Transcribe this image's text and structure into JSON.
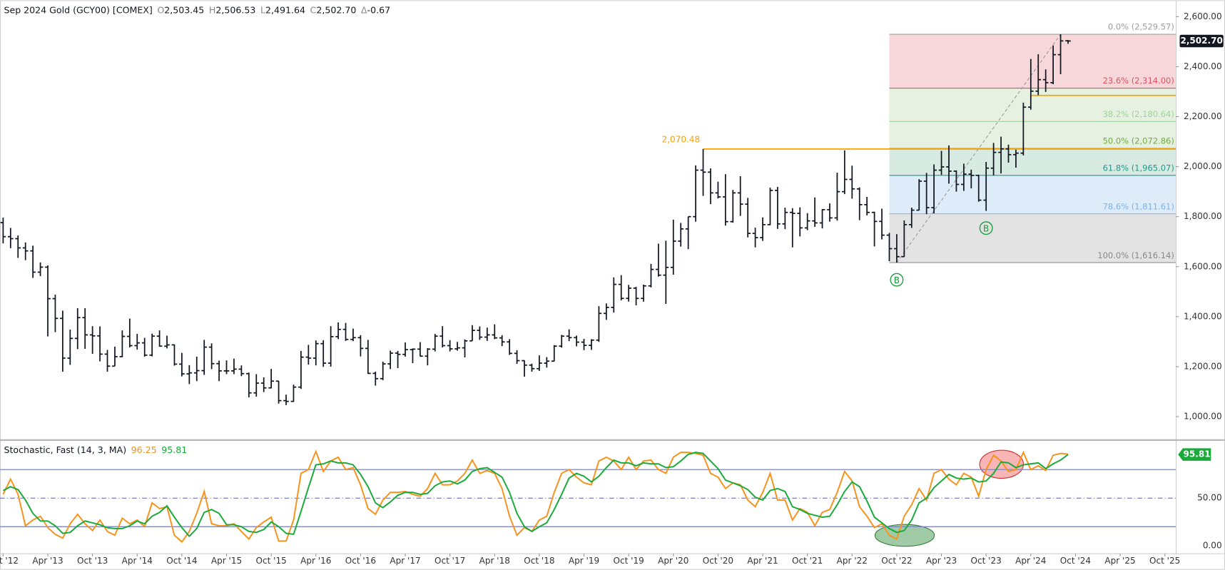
{
  "chart_data": {
    "type": "ohlc",
    "title": "Sep 2024 Gold (GCY00) [COMEX]",
    "quote": [
      {
        "name": "O",
        "value": 2503.45,
        "label": "2,503.45"
      },
      {
        "name": "H",
        "value": 2506.53,
        "label": "2,506.53"
      },
      {
        "name": "L",
        "value": 2491.64,
        "label": "2,491.64"
      },
      {
        "name": "C",
        "value": 2502.7,
        "label": "2,502.70"
      },
      {
        "name": "Δ",
        "value": -0.67
      }
    ],
    "x": [
      "2012-10",
      "2012-11",
      "2012-12",
      "2013-01",
      "2013-02",
      "2013-03",
      "2013-04",
      "2013-05",
      "2013-06",
      "2013-07",
      "2013-08",
      "2013-09",
      "2013-10",
      "2013-11",
      "2013-12",
      "2014-01",
      "2014-02",
      "2014-03",
      "2014-04",
      "2014-05",
      "2014-06",
      "2014-07",
      "2014-08",
      "2014-09",
      "2014-10",
      "2014-11",
      "2014-12",
      "2015-01",
      "2015-02",
      "2015-03",
      "2015-04",
      "2015-05",
      "2015-06",
      "2015-07",
      "2015-08",
      "2015-09",
      "2015-10",
      "2015-11",
      "2015-12",
      "2016-01",
      "2016-02",
      "2016-03",
      "2016-04",
      "2016-05",
      "2016-06",
      "2016-07",
      "2016-08",
      "2016-09",
      "2016-10",
      "2016-11",
      "2016-12",
      "2017-01",
      "2017-02",
      "2017-03",
      "2017-04",
      "2017-05",
      "2017-06",
      "2017-07",
      "2017-08",
      "2017-09",
      "2017-10",
      "2017-11",
      "2017-12",
      "2018-01",
      "2018-02",
      "2018-03",
      "2018-04",
      "2018-05",
      "2018-06",
      "2018-07",
      "2018-08",
      "2018-09",
      "2018-10",
      "2018-11",
      "2018-12",
      "2019-01",
      "2019-02",
      "2019-03",
      "2019-04",
      "2019-05",
      "2019-06",
      "2019-07",
      "2019-08",
      "2019-09",
      "2019-10",
      "2019-11",
      "2019-12",
      "2020-01",
      "2020-02",
      "2020-03",
      "2020-04",
      "2020-05",
      "2020-06",
      "2020-07",
      "2020-08",
      "2020-09",
      "2020-10",
      "2020-11",
      "2020-12",
      "2021-01",
      "2021-02",
      "2021-03",
      "2021-04",
      "2021-05",
      "2021-06",
      "2021-07",
      "2021-08",
      "2021-09",
      "2021-10",
      "2021-11",
      "2021-12",
      "2022-01",
      "2022-02",
      "2022-03",
      "2022-04",
      "2022-05",
      "2022-06",
      "2022-07",
      "2022-08",
      "2022-09",
      "2022-10",
      "2022-11",
      "2022-12",
      "2023-01",
      "2023-02",
      "2023-03",
      "2023-04",
      "2023-05",
      "2023-06",
      "2023-07",
      "2023-08",
      "2023-09",
      "2023-10",
      "2023-11",
      "2023-12",
      "2024-01",
      "2024-02",
      "2024-03",
      "2024-04",
      "2024-05",
      "2024-06",
      "2024-07",
      "2024-08",
      "2024-09"
    ],
    "open": [
      1776,
      1720,
      1712,
      1675,
      1663,
      1578,
      1598,
      1472,
      1393,
      1234,
      1313,
      1396,
      1327,
      1323,
      1250,
      1202,
      1240,
      1321,
      1284,
      1295,
      1246,
      1322,
      1282,
      1287,
      1210,
      1171,
      1175,
      1184,
      1278,
      1212,
      1183,
      1183,
      1190,
      1172,
      1095,
      1134,
      1115,
      1142,
      1064,
      1061,
      1118,
      1238,
      1234,
      1292,
      1214,
      1320,
      1349,
      1309,
      1316,
      1273,
      1173,
      1152,
      1211,
      1254,
      1249,
      1268,
      1270,
      1242,
      1270,
      1322,
      1284,
      1271,
      1275,
      1303,
      1345,
      1318,
      1327,
      1315,
      1299,
      1253,
      1224,
      1206,
      1192,
      1214,
      1222,
      1282,
      1322,
      1316,
      1298,
      1285,
      1306,
      1413,
      1437,
      1529,
      1473,
      1514,
      1473,
      1523,
      1589,
      1566,
      1597,
      1702,
      1751,
      1800,
      1986,
      1978,
      1895,
      1879,
      1780,
      1895,
      1850,
      1733,
      1716,
      1768,
      1905,
      1771,
      1817,
      1813,
      1755,
      1783,
      1775,
      1828,
      1795,
      1900,
      1949,
      1911,
      1848,
      1817,
      1781,
      1726,
      1672,
      1640,
      1768,
      1826,
      1942,
      1836,
      1986,
      1999,
      1982,
      1929,
      1970,
      1965,
      1866,
      1994,
      2057,
      2071,
      2048,
      2054,
      2238,
      2302,
      2348,
      2336,
      2448,
      2503.45
    ],
    "high": [
      1796,
      1755,
      1725,
      1697,
      1684,
      1617,
      1605,
      1488,
      1424,
      1348,
      1434,
      1434,
      1362,
      1361,
      1267,
      1280,
      1345,
      1392,
      1331,
      1315,
      1332,
      1345,
      1324,
      1289,
      1255,
      1206,
      1240,
      1307,
      1293,
      1224,
      1225,
      1232,
      1205,
      1176,
      1170,
      1157,
      1191,
      1143,
      1088,
      1128,
      1263,
      1287,
      1305,
      1306,
      1362,
      1377,
      1375,
      1352,
      1326,
      1307,
      1180,
      1220,
      1264,
      1263,
      1297,
      1273,
      1298,
      1274,
      1331,
      1362,
      1306,
      1299,
      1309,
      1366,
      1361,
      1356,
      1369,
      1326,
      1310,
      1266,
      1225,
      1212,
      1245,
      1238,
      1286,
      1327,
      1349,
      1324,
      1311,
      1310,
      1442,
      1453,
      1557,
      1566,
      1527,
      1519,
      1528,
      1611,
      1692,
      1704,
      1788,
      1775,
      1800,
      2005,
      2070.48,
      1993,
      1940,
      1970,
      1907,
      1962,
      1875,
      1756,
      1797,
      1916,
      1919,
      1836,
      1834,
      1837,
      1814,
      1877,
      1830,
      1853,
      1976,
      2065,
      2004,
      1917,
      1879,
      1820,
      1832,
      1735,
      1730,
      1785,
      1836,
      1950,
      1975,
      2009,
      2063,
      2085,
      1985,
      2012,
      1988,
      1968,
      2019,
      2095,
      2120,
      2088,
      2068,
      2256,
      2431,
      2450,
      2389,
      2485,
      2529.57,
      2506.53
    ],
    "low": [
      1693,
      1674,
      1635,
      1626,
      1555,
      1562,
      1321,
      1338,
      1180,
      1207,
      1270,
      1271,
      1251,
      1221,
      1180,
      1202,
      1238,
      1277,
      1268,
      1240,
      1241,
      1280,
      1273,
      1204,
      1161,
      1130,
      1142,
      1167,
      1190,
      1142,
      1170,
      1170,
      1162,
      1077,
      1080,
      1098,
      1113,
      1052,
      1046,
      1059,
      1111,
      1208,
      1205,
      1199,
      1200,
      1310,
      1303,
      1302,
      1241,
      1171,
      1124,
      1146,
      1190,
      1194,
      1240,
      1214,
      1241,
      1205,
      1261,
      1277,
      1261,
      1264,
      1237,
      1303,
      1307,
      1303,
      1310,
      1282,
      1247,
      1211,
      1160,
      1180,
      1183,
      1196,
      1221,
      1276,
      1302,
      1281,
      1266,
      1267,
      1299,
      1387,
      1416,
      1465,
      1460,
      1445,
      1460,
      1517,
      1560,
      1451,
      1568,
      1680,
      1670,
      1780,
      1883,
      1850,
      1873,
      1764,
      1776,
      1803,
      1717,
      1677,
      1703,
      1766,
      1751,
      1750,
      1677,
      1721,
      1746,
      1759,
      1753,
      1780,
      1784,
      1890,
      1872,
      1786,
      1805,
      1681,
      1709,
      1622,
      1616.14,
      1639,
      1755,
      1825,
      1810,
      1813,
      1967,
      1932,
      1900,
      1903,
      1913,
      1860,
      1823,
      1965,
      1973,
      2016,
      1996,
      2045,
      2228,
      2286,
      2299,
      2330,
      2370,
      2491.64
    ],
    "close": [
      1720,
      1712,
      1675,
      1663,
      1578,
      1598,
      1472,
      1393,
      1234,
      1313,
      1396,
      1327,
      1323,
      1250,
      1202,
      1240,
      1321,
      1284,
      1295,
      1246,
      1322,
      1282,
      1287,
      1210,
      1171,
      1175,
      1184,
      1278,
      1212,
      1183,
      1183,
      1190,
      1172,
      1095,
      1134,
      1115,
      1142,
      1064,
      1061,
      1118,
      1238,
      1234,
      1292,
      1214,
      1320,
      1349,
      1309,
      1316,
      1273,
      1173,
      1152,
      1211,
      1254,
      1249,
      1268,
      1270,
      1242,
      1270,
      1322,
      1284,
      1271,
      1275,
      1303,
      1345,
      1318,
      1327,
      1315,
      1299,
      1253,
      1224,
      1206,
      1192,
      1214,
      1222,
      1282,
      1322,
      1316,
      1298,
      1285,
      1306,
      1413,
      1437,
      1529,
      1473,
      1514,
      1473,
      1523,
      1589,
      1566,
      1597,
      1702,
      1751,
      1800,
      1986,
      1978,
      1895,
      1879,
      1780,
      1895,
      1850,
      1733,
      1716,
      1768,
      1905,
      1771,
      1817,
      1813,
      1755,
      1783,
      1775,
      1828,
      1795,
      1900,
      1949,
      1911,
      1848,
      1817,
      1781,
      1726,
      1672,
      1640,
      1768,
      1826,
      1942,
      1836,
      1986,
      1999,
      1982,
      1929,
      1970,
      1965,
      1866,
      1994,
      2057,
      2071,
      2048,
      2054,
      2238,
      2302,
      2348,
      2336,
      2448,
      2503,
      2502.7
    ],
    "bar_color": "#131722",
    "xlim": [
      "2012-10",
      "2025-10"
    ],
    "xticks": [
      {
        "value": "2012-10",
        "label": "Oct '12"
      },
      {
        "value": "2013-04",
        "label": "Apr '13"
      },
      {
        "value": "2013-10",
        "label": "Oct '13"
      },
      {
        "value": "2014-04",
        "label": "Apr '14"
      },
      {
        "value": "2014-10",
        "label": "Oct '14"
      },
      {
        "value": "2015-04",
        "label": "Apr '15"
      },
      {
        "value": "2015-10",
        "label": "Oct '15"
      },
      {
        "value": "2016-04",
        "label": "Apr '16"
      },
      {
        "value": "2016-10",
        "label": "Oct '16"
      },
      {
        "value": "2017-04",
        "label": "Apr '17"
      },
      {
        "value": "2017-10",
        "label": "Oct '17"
      },
      {
        "value": "2018-04",
        "label": "Apr '18"
      },
      {
        "value": "2018-10",
        "label": "Oct '18"
      },
      {
        "value": "2019-04",
        "label": "Apr '19"
      },
      {
        "value": "2019-10",
        "label": "Oct '19"
      },
      {
        "value": "2020-04",
        "label": "Apr '20"
      },
      {
        "value": "2020-10",
        "label": "Oct '20"
      },
      {
        "value": "2021-04",
        "label": "Apr '21"
      },
      {
        "value": "2021-10",
        "label": "Oct '21"
      },
      {
        "value": "2022-04",
        "label": "Apr '22"
      },
      {
        "value": "2022-10",
        "label": "Oct '22"
      },
      {
        "value": "2023-04",
        "label": "Apr '23"
      },
      {
        "value": "2023-10",
        "label": "Oct '23"
      },
      {
        "value": "2024-04",
        "label": "Apr '24"
      },
      {
        "value": "2024-10",
        "label": "Oct '24"
      },
      {
        "value": "2025-04",
        "label": "Apr '25"
      },
      {
        "value": "2025-10",
        "label": "Oct '25"
      }
    ],
    "ylim": [
      906.25,
      2665.625
    ],
    "yticks": [
      {
        "value": 1000,
        "label": "1,000.00"
      },
      {
        "value": 1200,
        "label": "1,200.00"
      },
      {
        "value": 1400,
        "label": "1,400.00"
      },
      {
        "value": 1600,
        "label": "1,600.00"
      },
      {
        "value": 1800,
        "label": "1,800.00"
      },
      {
        "value": 2000,
        "label": "2,000.00"
      },
      {
        "value": 2200,
        "label": "2,200.00"
      },
      {
        "value": 2400,
        "label": "2,400.00"
      },
      {
        "value": 2600,
        "label": "2,600.00"
      }
    ],
    "grid": false,
    "lines": [
      {
        "value": 2070.48,
        "label": "2,070.48",
        "from": "2020-08",
        "color": "#f5a20a"
      },
      {
        "value": 2285,
        "from": "2024-04",
        "color": "#f5a20a"
      }
    ],
    "fib": {
      "from": "2022-09",
      "trend_from": "2022-10",
      "trend_to": "2024-08",
      "levels": [
        {
          "value": 2529.57,
          "label": "0.0% (2,529.57)",
          "color": "#9e9e9e",
          "band": "#f8d7da"
        },
        {
          "value": 2314.0,
          "label": "23.6% (2,314.00)",
          "color": "#e05260",
          "band": "#e6f1e1"
        },
        {
          "value": 2180.64,
          "label": "38.2% (2,180.64)",
          "color": "#9fd39b",
          "band": "#e6f1e1"
        },
        {
          "value": 2072.86,
          "label": "50.0% (2,072.86)",
          "color": "#6fae3e",
          "band": "#d8ebe2"
        },
        {
          "value": 1965.07,
          "label": "61.8% (1,965.07)",
          "color": "#24978a",
          "band": "#deebf8"
        },
        {
          "value": 1811.61,
          "label": "78.6% (1,811.61)",
          "color": "#7fb4e6",
          "band": "#e3e3e3"
        },
        {
          "value": 1616.14,
          "label": "100.0% (1,616.14)",
          "color": "#888888"
        }
      ]
    },
    "markers": [
      {
        "label": "B",
        "x": "2022-10",
        "color": "#1a9a3c"
      },
      {
        "label": "B",
        "x": "2023-10",
        "color": "#1a9a3c"
      }
    ],
    "stochastic": {
      "type": "line",
      "title": "Stochastic, Fast  (14, 3, MA)",
      "ylim": [
        -8,
        111
      ],
      "yticks": [
        {
          "value": 0,
          "label": "0.00"
        },
        {
          "value": 50,
          "label": "50.00"
        }
      ],
      "levels": [
        20,
        80
      ],
      "midline": 50,
      "series": [
        {
          "color": "#f7931a",
          "values": [
            54,
            70,
            54,
            21,
            27,
            31,
            19,
            12,
            8,
            23,
            33,
            23,
            16,
            27,
            15,
            11,
            29,
            23,
            27,
            20,
            45,
            39,
            41,
            11,
            4,
            15,
            34,
            57,
            23,
            21,
            21,
            23,
            15,
            7,
            19,
            25,
            30,
            5,
            5,
            27,
            76,
            80,
            99,
            78,
            89,
            93,
            80,
            82,
            64,
            39,
            33,
            48,
            56,
            56,
            57,
            54,
            52,
            60,
            76,
            64,
            64,
            68,
            76,
            90,
            76,
            79,
            76,
            60,
            31,
            11,
            19,
            15,
            27,
            31,
            56,
            76,
            80,
            72,
            66,
            64,
            89,
            93,
            89,
            80,
            93,
            80,
            89,
            90,
            80,
            76,
            93,
            98,
            98,
            97,
            95,
            76,
            72,
            60,
            66,
            64,
            48,
            41,
            56,
            76,
            48,
            48,
            27,
            39,
            35,
            21,
            35,
            38,
            56,
            78,
            68,
            41,
            31,
            19,
            23,
            11,
            7,
            31,
            43,
            60,
            48,
            76,
            80,
            70,
            64,
            76,
            72,
            52,
            80,
            95,
            89,
            78,
            80,
            98,
            80,
            84,
            79,
            95,
            97,
            96.25
          ]
        },
        {
          "color": "#1aaa3a",
          "values": [
            58,
            62,
            59,
            48,
            34,
            26,
            26,
            21,
            13,
            14,
            21,
            26,
            24,
            22,
            19,
            18,
            18,
            21,
            26,
            23,
            31,
            35,
            42,
            30,
            19,
            10,
            18,
            35,
            38,
            34,
            22,
            22,
            20,
            15,
            14,
            17,
            25,
            20,
            13,
            12,
            36,
            61,
            85,
            86,
            89,
            87,
            87,
            85,
            75,
            62,
            45,
            40,
            46,
            53,
            56,
            56,
            54,
            55,
            63,
            67,
            68,
            65,
            69,
            78,
            81,
            82,
            77,
            72,
            56,
            34,
            20,
            15,
            20,
            24,
            38,
            54,
            71,
            76,
            73,
            67,
            73,
            82,
            90,
            87,
            87,
            84,
            87,
            86,
            86,
            82,
            83,
            89,
            96,
            98,
            97,
            89,
            81,
            69,
            66,
            63,
            59,
            51,
            48,
            58,
            60,
            57,
            41,
            38,
            34,
            32,
            30,
            31,
            43,
            57,
            67,
            62,
            47,
            30,
            24,
            18,
            14,
            16,
            27,
            45,
            50,
            61,
            68,
            75,
            71,
            70,
            71,
            67,
            68,
            76,
            88,
            87,
            82,
            85,
            86,
            87,
            81,
            86,
            90,
            95.81
          ]
        }
      ]
    }
  }
}
